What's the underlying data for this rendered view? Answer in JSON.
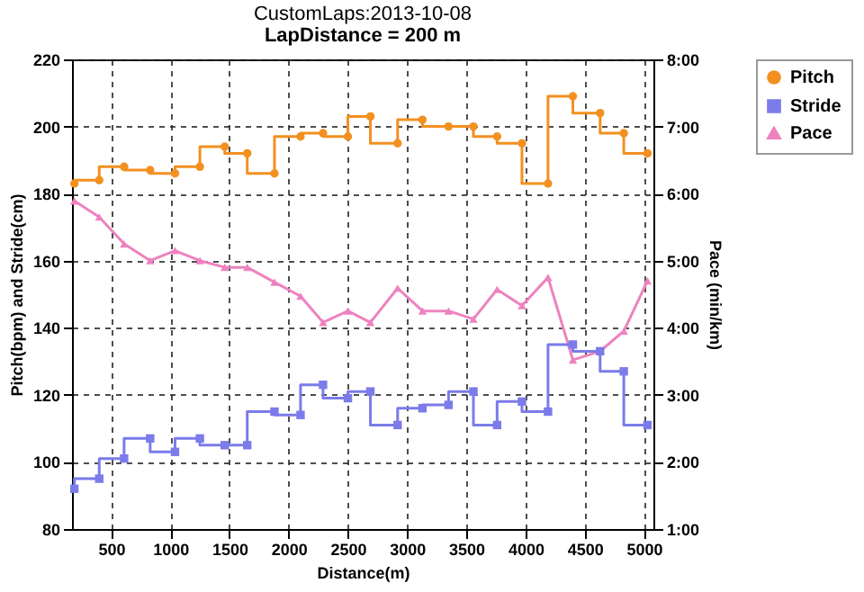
{
  "chart_data": {
    "type": "step",
    "title": "CustomLaps:2013-10-08",
    "subtitle": "LapDistance = 200 m",
    "xlabel": "Distance(m)",
    "ylabel": "Pitch(bpm) and Stride(cm)",
    "y2label": "Pace (min/km)",
    "x": [
      190,
      400,
      610,
      830,
      1040,
      1250,
      1460,
      1650,
      1880,
      2100,
      2290,
      2500,
      2690,
      2920,
      3130,
      3350,
      3560,
      3760,
      3970,
      4190,
      4400,
      4630,
      4830,
      5030
    ],
    "series": [
      {
        "name": "Pitch",
        "color": "#f39020",
        "marker": "circle",
        "values": [
          183,
          184,
          188,
          187,
          186,
          188,
          194,
          192,
          186,
          197,
          198,
          197,
          203,
          195,
          202,
          200,
          200,
          197,
          195,
          183,
          209,
          204,
          198,
          192
        ]
      },
      {
        "name": "Stride",
        "color": "#7b7bea",
        "marker": "square",
        "values": [
          92,
          95,
          101,
          107,
          103,
          107,
          105,
          105,
          115,
          114,
          123,
          119,
          121,
          111,
          116,
          117,
          121,
          111,
          118,
          115,
          135,
          133,
          127,
          111
        ]
      },
      {
        "name": "Pace",
        "type": "line",
        "axis": "y2",
        "color": "#ee82c0",
        "marker": "triangle",
        "values": [
          5.89,
          5.65,
          5.25,
          5.0,
          5.15,
          5.0,
          4.9,
          4.9,
          4.68,
          4.47,
          4.08,
          4.25,
          4.08,
          4.59,
          4.25,
          4.25,
          4.13,
          4.57,
          4.33,
          4.75,
          3.52,
          3.65,
          3.95,
          4.7
        ]
      }
    ],
    "xlim": [
      170,
      5080
    ],
    "xticks": [
      500,
      1000,
      1500,
      2000,
      2500,
      3000,
      3500,
      4000,
      4500,
      5000
    ],
    "ylim": [
      80,
      220
    ],
    "yticks": [
      80,
      100,
      120,
      140,
      160,
      180,
      200,
      220
    ],
    "y2lim": [
      1,
      8
    ],
    "y2ticks": [
      {
        "value": 1,
        "label": "1:00"
      },
      {
        "value": 2,
        "label": "2:00"
      },
      {
        "value": 3,
        "label": "3:00"
      },
      {
        "value": 4,
        "label": "4:00"
      },
      {
        "value": 5,
        "label": "5:00"
      },
      {
        "value": 6,
        "label": "6:00"
      },
      {
        "value": 7,
        "label": "7:00"
      },
      {
        "value": 8,
        "label": "8:00"
      }
    ],
    "grid": true,
    "legend": "top right"
  }
}
